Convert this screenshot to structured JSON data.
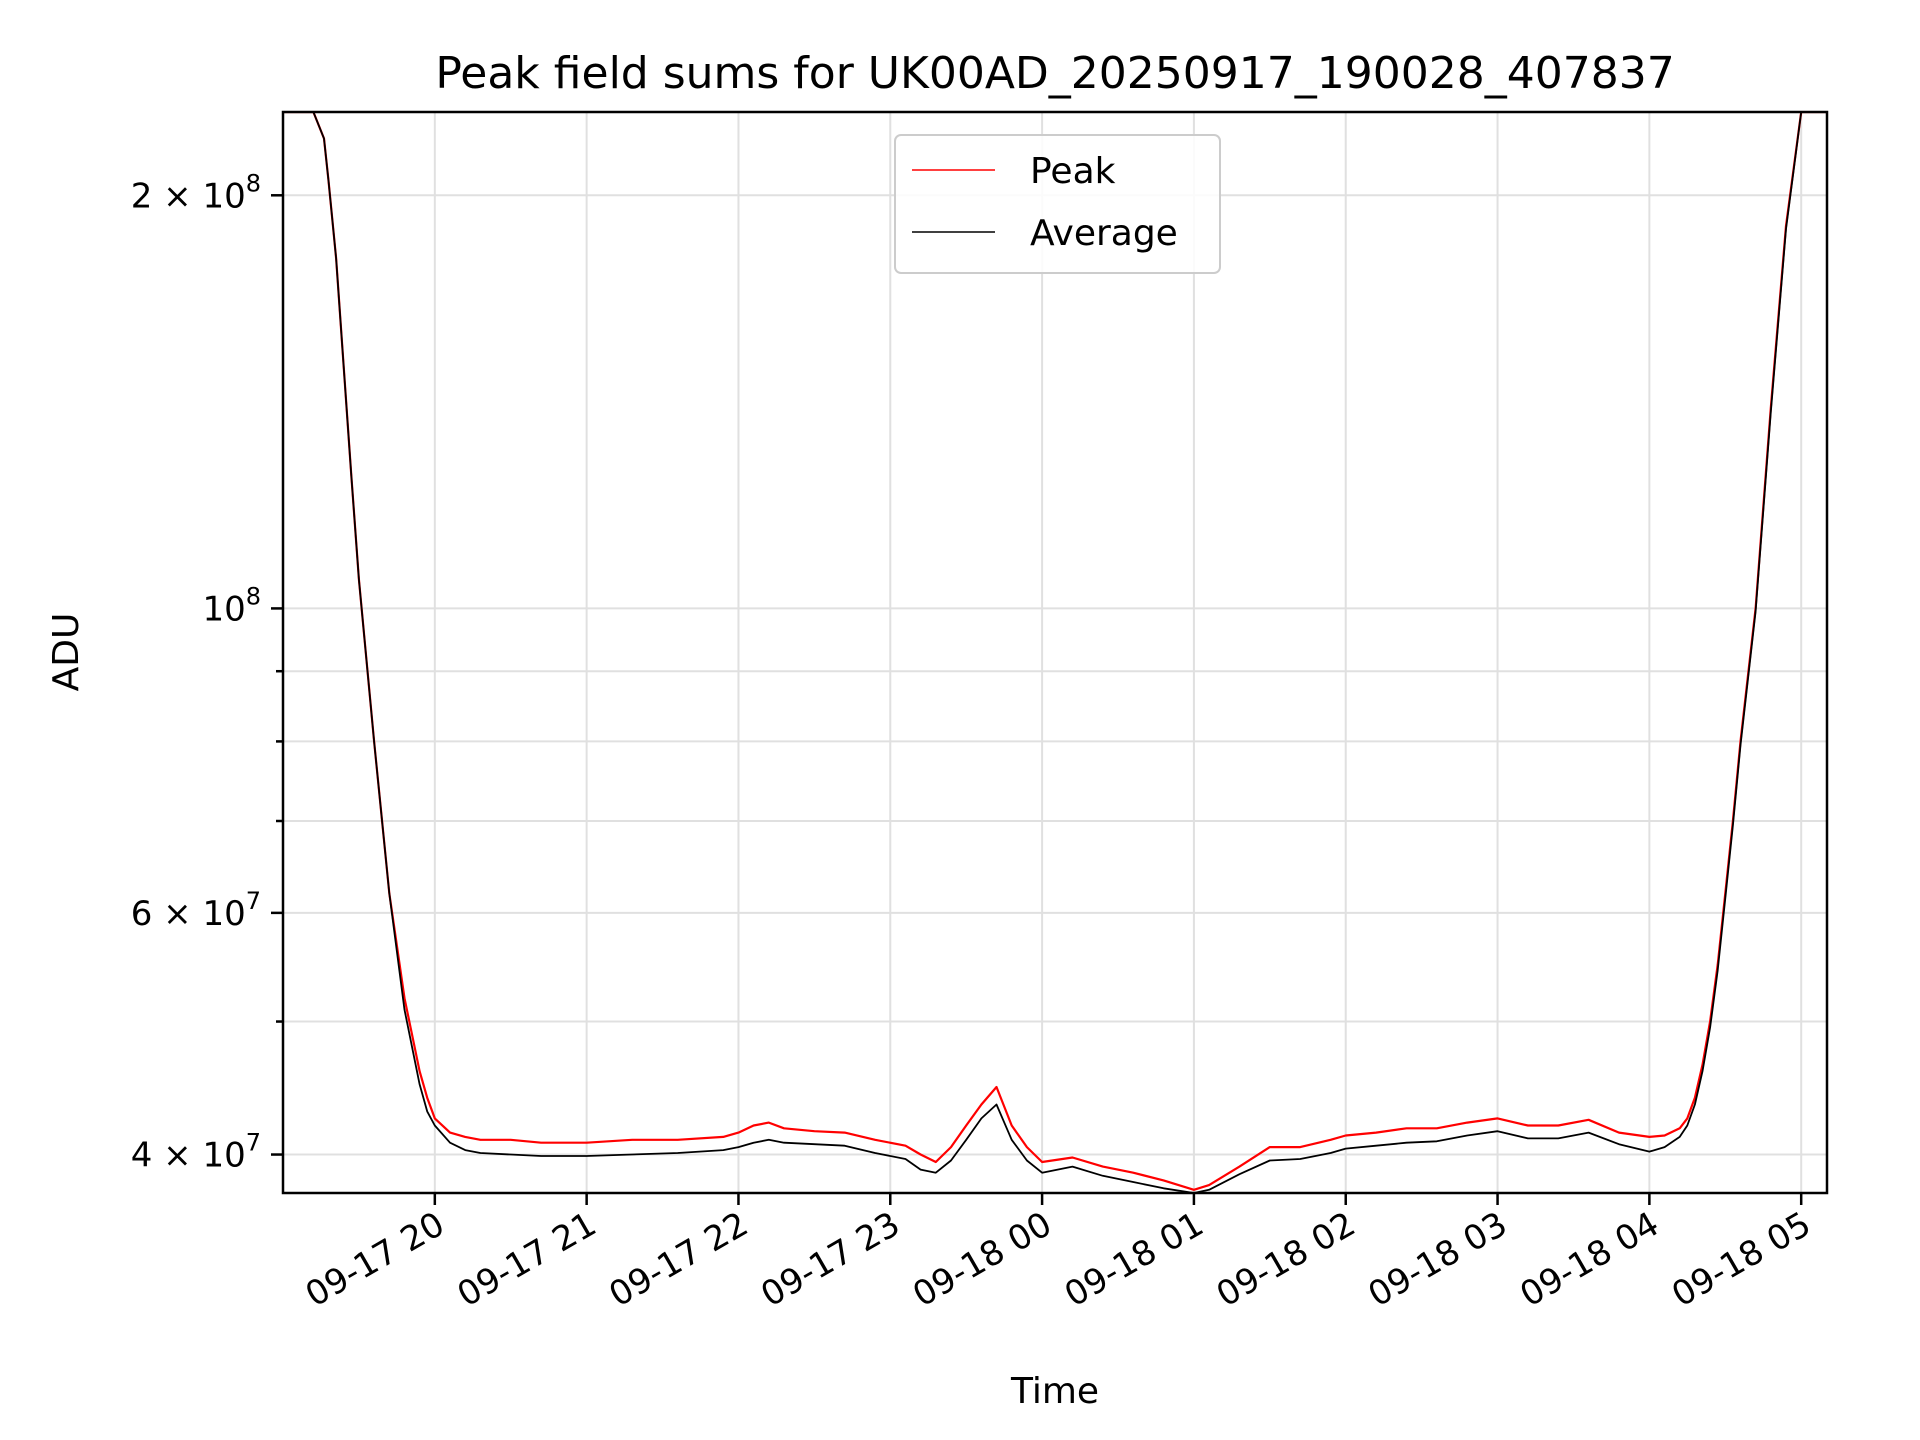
{
  "chart_data": {
    "type": "line",
    "title": "Peak field sums for UK00AD_20250917_190028_407837",
    "xlabel": "Time",
    "ylabel": "ADU",
    "yscale": "log",
    "ylim": [
      37500000,
      230000000
    ],
    "xlim_hours": [
      19.0,
      29.17
    ],
    "grid": true,
    "legend_position": "top-center",
    "colors": {
      "peak": "#ff0000",
      "average": "#000000",
      "grid": "#e0e0e0"
    },
    "x_ticks": [
      {
        "hour": 20,
        "label": "09-17 20"
      },
      {
        "hour": 21,
        "label": "09-17 21"
      },
      {
        "hour": 22,
        "label": "09-17 22"
      },
      {
        "hour": 23,
        "label": "09-17 23"
      },
      {
        "hour": 24,
        "label": "09-18 00"
      },
      {
        "hour": 25,
        "label": "09-18 01"
      },
      {
        "hour": 26,
        "label": "09-18 02"
      },
      {
        "hour": 27,
        "label": "09-18 03"
      },
      {
        "hour": 28,
        "label": "09-18 04"
      },
      {
        "hour": 29,
        "label": "09-18 05"
      }
    ],
    "y_major_ticks": [
      {
        "value": 40000000,
        "base": "4 × 10",
        "exp": "7"
      },
      {
        "value": 60000000,
        "base": "6 × 10",
        "exp": "7"
      },
      {
        "value": 100000000,
        "base": "10",
        "exp": "8"
      },
      {
        "value": 200000000,
        "base": "2 × 10",
        "exp": "8"
      }
    ],
    "y_minor_ticks": [
      50000000,
      70000000,
      80000000,
      90000000
    ],
    "series": [
      {
        "name": "Peak",
        "color": "#ff0000",
        "x_hours": [
          19.0,
          19.2,
          19.27,
          19.3,
          19.35,
          19.4,
          19.45,
          19.5,
          19.6,
          19.7,
          19.8,
          19.9,
          19.95,
          20.0,
          20.1,
          20.2,
          20.3,
          20.5,
          20.7,
          21.0,
          21.3,
          21.6,
          21.9,
          22.0,
          22.1,
          22.2,
          22.3,
          22.5,
          22.7,
          22.9,
          23.1,
          23.2,
          23.3,
          23.4,
          23.5,
          23.6,
          23.7,
          23.8,
          23.9,
          24.0,
          24.2,
          24.4,
          24.6,
          24.8,
          25.0,
          25.1,
          25.3,
          25.5,
          25.7,
          25.9,
          26.0,
          26.2,
          26.4,
          26.6,
          26.8,
          27.0,
          27.2,
          27.4,
          27.6,
          27.8,
          28.0,
          28.1,
          28.2,
          28.25,
          28.3,
          28.35,
          28.4,
          28.45,
          28.5,
          28.55,
          28.6,
          28.7,
          28.8,
          28.9,
          29.0,
          29.17
        ],
        "values": [
          230000000,
          230000000,
          220000000,
          205000000,
          180000000,
          150000000,
          125000000,
          105000000,
          80000000,
          62000000,
          52000000,
          46000000,
          44000000,
          42500000,
          41500000,
          41200000,
          41000000,
          41000000,
          40800000,
          40800000,
          41000000,
          41000000,
          41200000,
          41500000,
          42000000,
          42200000,
          41800000,
          41600000,
          41500000,
          41000000,
          40600000,
          40000000,
          39500000,
          40500000,
          42000000,
          43500000,
          44800000,
          42000000,
          40500000,
          39500000,
          39800000,
          39200000,
          38800000,
          38300000,
          37700000,
          38000000,
          39200000,
          40500000,
          40500000,
          41000000,
          41300000,
          41500000,
          41800000,
          41800000,
          42200000,
          42500000,
          42000000,
          42000000,
          42400000,
          41500000,
          41200000,
          41300000,
          41800000,
          42500000,
          44000000,
          46500000,
          50000000,
          55000000,
          62000000,
          70000000,
          80000000,
          100000000,
          140000000,
          190000000,
          230000000,
          230000000
        ]
      },
      {
        "name": "Average",
        "color": "#000000",
        "x_hours": [
          19.0,
          19.2,
          19.27,
          19.3,
          19.35,
          19.4,
          19.45,
          19.5,
          19.6,
          19.7,
          19.8,
          19.9,
          19.95,
          20.0,
          20.1,
          20.2,
          20.3,
          20.5,
          20.7,
          21.0,
          21.3,
          21.6,
          21.9,
          22.0,
          22.1,
          22.2,
          22.3,
          22.5,
          22.7,
          22.9,
          23.1,
          23.2,
          23.3,
          23.4,
          23.5,
          23.6,
          23.7,
          23.8,
          23.9,
          24.0,
          24.2,
          24.4,
          24.6,
          24.8,
          25.0,
          25.1,
          25.3,
          25.5,
          25.7,
          25.9,
          26.0,
          26.2,
          26.4,
          26.6,
          26.8,
          27.0,
          27.2,
          27.4,
          27.6,
          27.8,
          28.0,
          28.1,
          28.2,
          28.25,
          28.3,
          28.35,
          28.4,
          28.45,
          28.5,
          28.55,
          28.6,
          28.7,
          28.8,
          28.9,
          29.0,
          29.17
        ],
        "values": [
          230000000,
          230000000,
          220000000,
          205000000,
          180000000,
          150000000,
          125000000,
          105000000,
          80000000,
          62000000,
          51000000,
          45000000,
          43000000,
          42000000,
          40800000,
          40300000,
          40100000,
          40000000,
          39900000,
          39900000,
          40000000,
          40100000,
          40300000,
          40500000,
          40800000,
          41000000,
          40800000,
          40700000,
          40600000,
          40100000,
          39700000,
          39000000,
          38800000,
          39600000,
          41000000,
          42500000,
          43500000,
          41000000,
          39600000,
          38800000,
          39200000,
          38600000,
          38200000,
          37800000,
          37500000,
          37700000,
          38700000,
          39600000,
          39700000,
          40100000,
          40400000,
          40600000,
          40800000,
          40900000,
          41300000,
          41600000,
          41100000,
          41100000,
          41500000,
          40700000,
          40200000,
          40500000,
          41200000,
          42000000,
          43500000,
          46000000,
          49500000,
          54500000,
          61500000,
          69500000,
          79500000,
          99500000,
          139000000,
          189000000,
          230000000,
          230000000
        ]
      }
    ]
  }
}
